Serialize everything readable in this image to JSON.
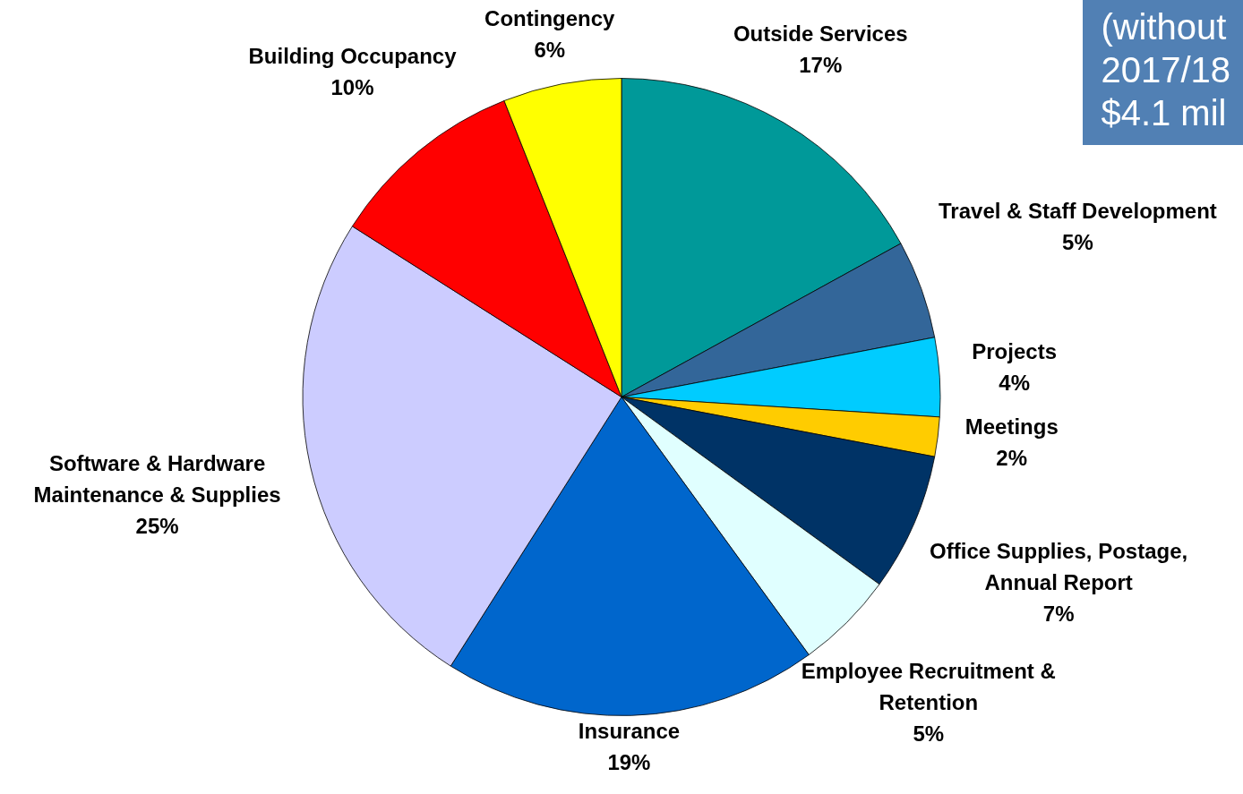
{
  "chart_data": {
    "type": "pie",
    "categories": [
      "Outside Services",
      "Travel & Staff Development",
      "Projects",
      "Meetings",
      "Office Supplies, Postage, Annual Report",
      "Employee Recruitment & Retention",
      "Insurance",
      "Software & Hardware Maintenance & Supplies",
      "Building Occupancy",
      "Contingency"
    ],
    "values": [
      17,
      5,
      4,
      2,
      7,
      5,
      19,
      25,
      10,
      6
    ],
    "value_labels": [
      "17%",
      "5%",
      "4%",
      "2%",
      "7%",
      "5%",
      "19%",
      "25%",
      "10%",
      "6%"
    ],
    "colors": [
      "#009999",
      "#336699",
      "#00ccff",
      "#ffcc00",
      "#003366",
      "#e0ffff",
      "#0066cc",
      "#ccccff",
      "#ff0000",
      "#ffff00"
    ],
    "annotations": [
      "(without",
      "2017/18",
      "$4.1 mil"
    ]
  }
}
